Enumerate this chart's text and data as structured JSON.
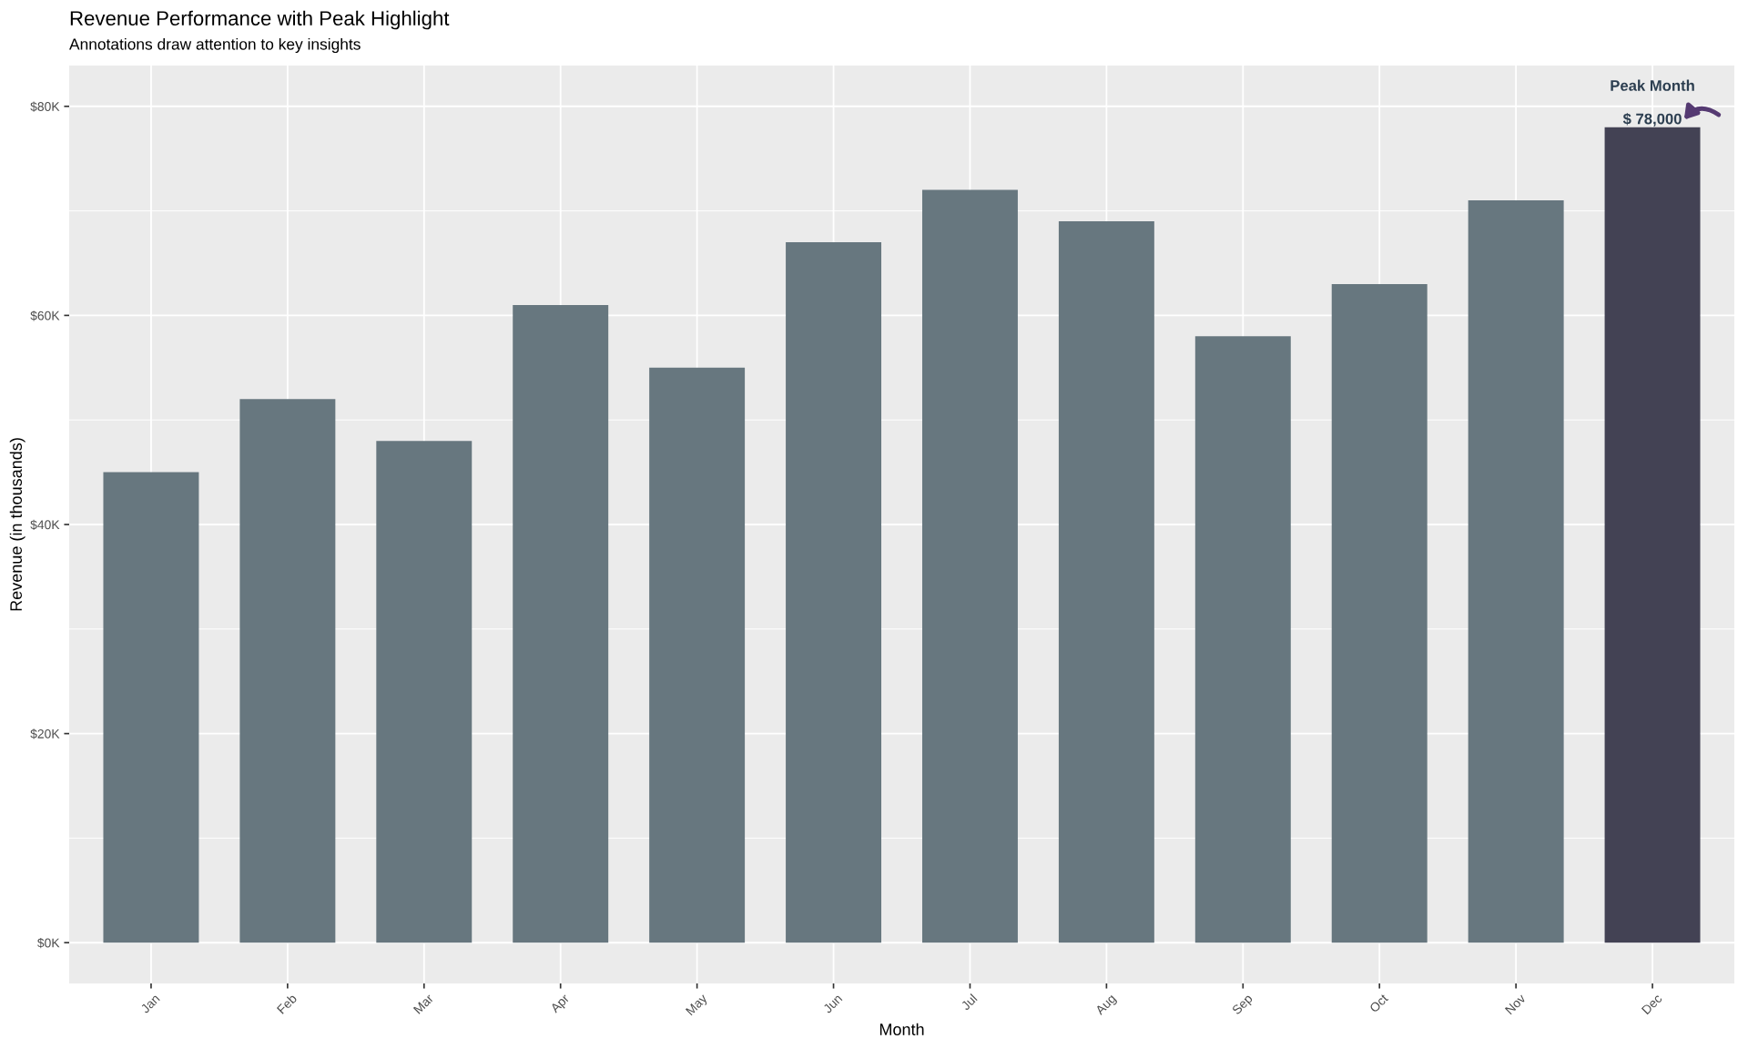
{
  "chart_data": {
    "type": "bar",
    "title": "Revenue Performance with Peak Highlight",
    "subtitle": "Annotations draw attention to key insights",
    "xlabel": "Month",
    "ylabel": "Revenue (in thousands)",
    "categories": [
      "Jan",
      "Feb",
      "Mar",
      "Apr",
      "May",
      "Jun",
      "Jul",
      "Aug",
      "Sep",
      "Oct",
      "Nov",
      "Dec"
    ],
    "values": [
      45000,
      52000,
      48000,
      61000,
      55000,
      67000,
      72000,
      69000,
      58000,
      63000,
      71000,
      78000
    ],
    "colors": [
      "#67777f",
      "#67777f",
      "#67777f",
      "#67777f",
      "#67777f",
      "#67777f",
      "#67777f",
      "#67777f",
      "#67777f",
      "#67777f",
      "#67777f",
      "#434254"
    ],
    "value_labels": [
      null,
      null,
      null,
      null,
      null,
      null,
      null,
      null,
      null,
      null,
      null,
      "$ 78,000"
    ],
    "annotations": [
      "Peak Month"
    ],
    "ylim": [
      -3900,
      83900
    ],
    "yticks": [
      {
        "value": 0,
        "label": "$0K"
      },
      {
        "value": 20000,
        "label": "$20K"
      },
      {
        "value": 40000,
        "label": "$40K"
      },
      {
        "value": 60000,
        "label": "$60K"
      },
      {
        "value": 80000,
        "label": "$80K"
      }
    ],
    "grid": true
  }
}
